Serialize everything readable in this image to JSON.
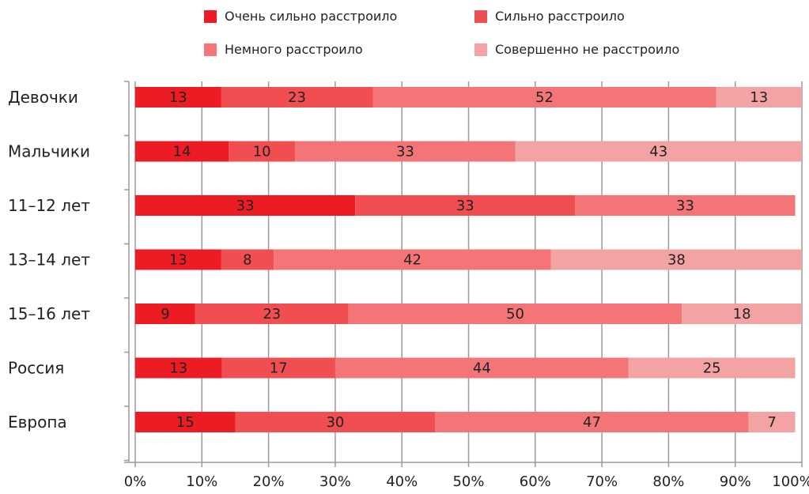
{
  "chart_data": {
    "type": "bar",
    "orientation": "horizontal",
    "stacked": true,
    "title": "",
    "xlabel": "",
    "ylabel": "",
    "xlim": [
      0,
      100
    ],
    "grid": true,
    "legend_position": "top",
    "x_tick_labels": [
      "0%",
      "10%",
      "20%",
      "30%",
      "40%",
      "50%",
      "60%",
      "70%",
      "80%",
      "90%",
      "100%"
    ],
    "categories": [
      "Девочки",
      "Мальчики",
      "11–12 лет",
      "13–14 лет",
      "15–16 лет",
      "Россия",
      "Европа"
    ],
    "series": [
      {
        "name": "Очень сильно расстроило",
        "color": "#ed1c24",
        "values": [
          13,
          14,
          33,
          13,
          9,
          13,
          15
        ]
      },
      {
        "name": "Сильно расстроило",
        "color": "#f04e50",
        "values": [
          23,
          10,
          33,
          8,
          23,
          17,
          30
        ]
      },
      {
        "name": "Немного расстроило",
        "color": "#f47577",
        "values": [
          52,
          33,
          33,
          42,
          50,
          44,
          47
        ]
      },
      {
        "name": "Совершенно не расстроило",
        "color": "#f4a3a4",
        "values": [
          13,
          43,
          null,
          38,
          18,
          25,
          7
        ]
      }
    ]
  }
}
